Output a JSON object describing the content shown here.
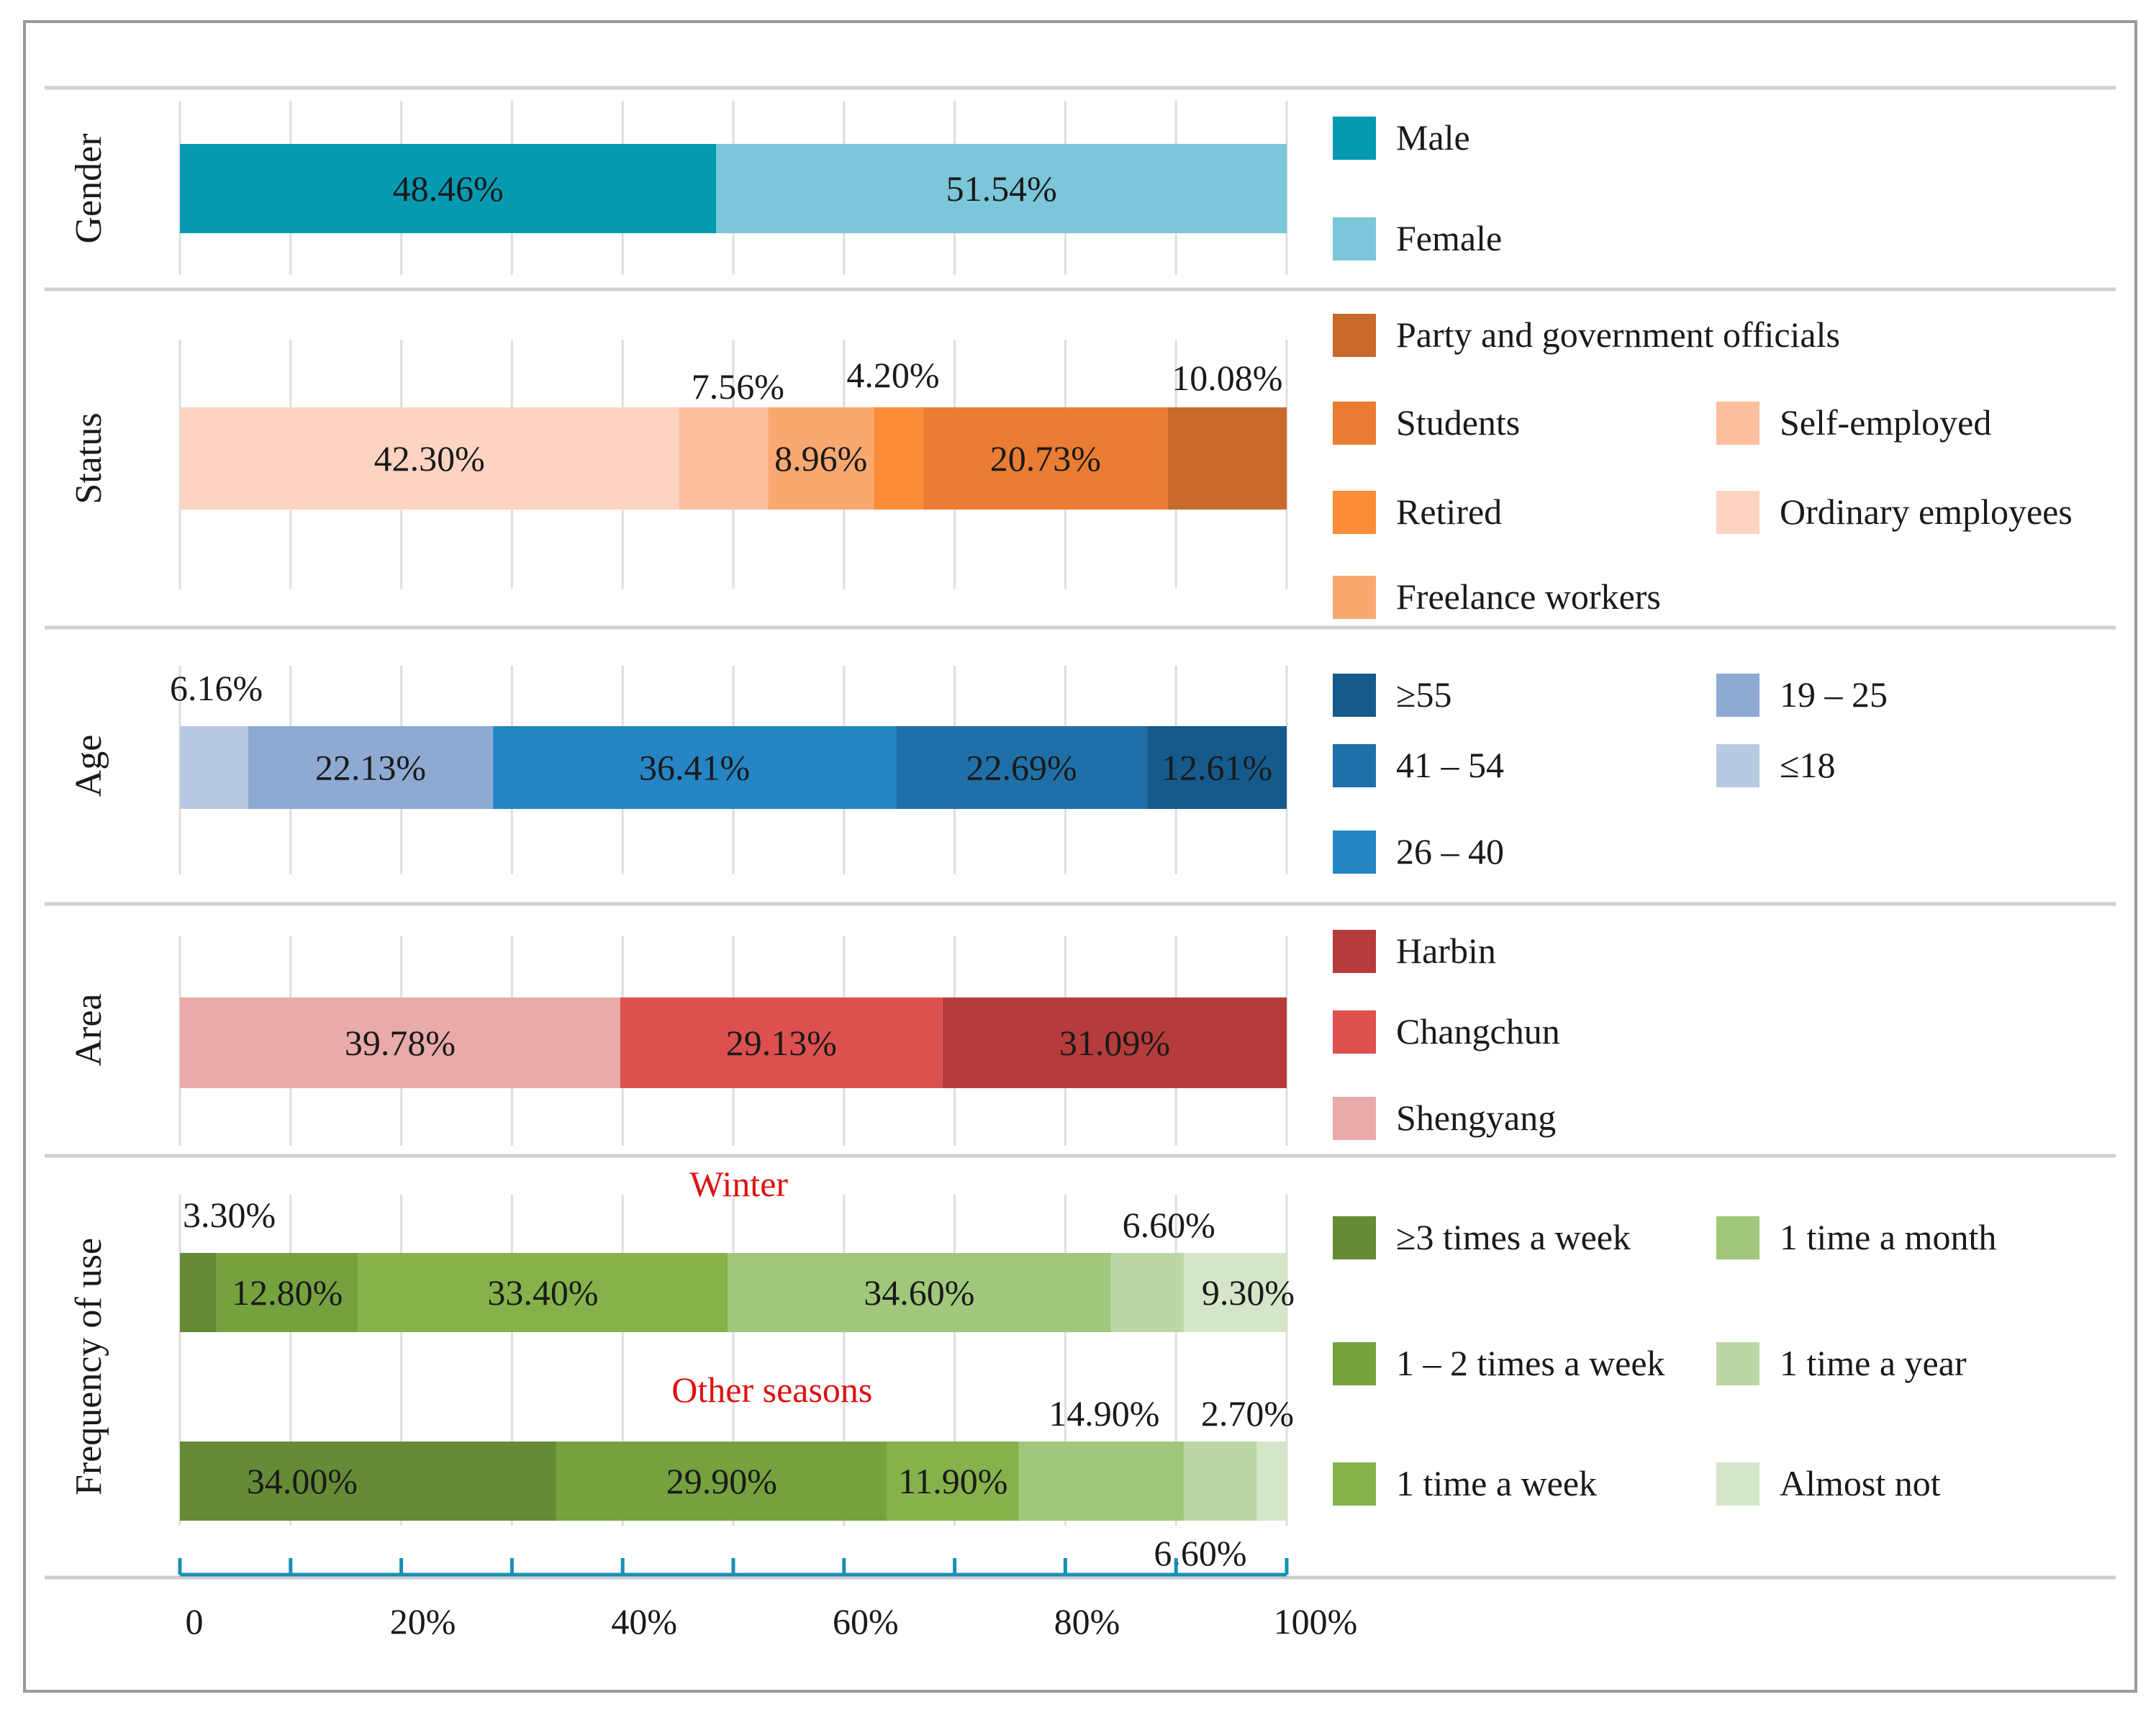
{
  "chart_data": {
    "type": "stacked-horizontal-bar",
    "x_ticks": [
      "0",
      "20%",
      "40%",
      "60%",
      "80%",
      "100%"
    ],
    "panels": [
      {
        "label": "Gender",
        "bars": [
          {
            "subtitle": "",
            "segments": [
              {
                "name": "Male",
                "value": 48.46,
                "label": "48.46%",
                "color": "#069ab2"
              },
              {
                "name": "Female",
                "value": 51.54,
                "label": "51.54%",
                "color": "#7bc6d8"
              }
            ]
          }
        ],
        "legend": [
          {
            "name": "Male",
            "color": "#069ab2"
          },
          {
            "name": "Female",
            "color": "#7bc6d8"
          }
        ]
      },
      {
        "label": "Status",
        "bars": [
          {
            "subtitle": "",
            "segments": [
              {
                "name": "Ordinary employees",
                "value": 42.3,
                "label": "42.30%",
                "color": "#fdd4c2"
              },
              {
                "name": "Self-employed",
                "value": 7.56,
                "label": "7.56%",
                "color": "#fbbf9e"
              },
              {
                "name": "Freelance workers",
                "value": 8.96,
                "label": "8.96%",
                "color": "#f9a870"
              },
              {
                "name": "Retired",
                "value": 4.2,
                "label": "4.20%",
                "color": "#fb8d38"
              },
              {
                "name": "Students",
                "value": 20.73,
                "label": "20.73%",
                "color": "#ea7d33"
              },
              {
                "name": "Party and government officials",
                "value": 10.08,
                "label": "10.08%",
                "color": "#c96a2c"
              }
            ]
          }
        ],
        "legend": [
          {
            "name": "Party and government officials",
            "color": "#c96a2c"
          },
          {
            "name": "Students",
            "color": "#ea7d33"
          },
          {
            "name": "Self-employed",
            "color": "#fbbf9e"
          },
          {
            "name": "Retired",
            "color": "#fb8d38"
          },
          {
            "name": "Ordinary employees",
            "color": "#fdd4c2"
          },
          {
            "name": "Freelance workers",
            "color": "#f9a870"
          }
        ]
      },
      {
        "label": "Age",
        "bars": [
          {
            "subtitle": "",
            "segments": [
              {
                "name": "≤18",
                "value": 6.16,
                "label": "6.16%",
                "color": "#b8c9e2"
              },
              {
                "name": "19 – 25",
                "value": 22.13,
                "label": "22.13%",
                "color": "#8eaad3"
              },
              {
                "name": "26 – 40",
                "value": 36.41,
                "label": "36.41%",
                "color": "#2585c4"
              },
              {
                "name": "41 – 54",
                "value": 22.69,
                "label": "22.69%",
                "color": "#1f70a8"
              },
              {
                "name": "≥55",
                "value": 12.61,
                "label": "12.61%",
                "color": "#155a8c"
              }
            ]
          }
        ],
        "legend": [
          {
            "name": "≥55",
            "color": "#155a8c"
          },
          {
            "name": "19 – 25",
            "color": "#8eaad3"
          },
          {
            "name": "41 – 54",
            "color": "#1f70a8"
          },
          {
            "name": "≤18",
            "color": "#b8c9e2"
          },
          {
            "name": "26 – 40",
            "color": "#2585c4"
          }
        ]
      },
      {
        "label": "Area",
        "bars": [
          {
            "subtitle": "",
            "segments": [
              {
                "name": "Shengyang",
                "value": 39.78,
                "label": "39.78%",
                "color": "#e9aaaa"
              },
              {
                "name": "Changchun",
                "value": 29.13,
                "label": "29.13%",
                "color": "#dc5150"
              },
              {
                "name": "Harbin",
                "value": 31.09,
                "label": "31.09%",
                "color": "#b53c3b"
              }
            ]
          }
        ],
        "legend": [
          {
            "name": "Harbin",
            "color": "#b53c3b"
          },
          {
            "name": "Changchun",
            "color": "#dc5150"
          },
          {
            "name": "Shengyang",
            "color": "#e9aaaa"
          }
        ]
      },
      {
        "label": "Frequency of use",
        "bars": [
          {
            "subtitle": "Winter",
            "segments": [
              {
                "name": "≥3 times a week",
                "value": 3.3,
                "label": "3.30%",
                "color": "#668b37"
              },
              {
                "name": "1 – 2 times a week",
                "value": 12.8,
                "label": "12.80%",
                "color": "#76a13f"
              },
              {
                "name": "1 time  a week",
                "value": 33.4,
                "label": "33.40%",
                "color": "#85b24a"
              },
              {
                "name": "1 time  a month",
                "value": 34.6,
                "label": "34.60%",
                "color": "#a0c77a"
              },
              {
                "name": "1 time  a year",
                "value": 6.6,
                "label": "6.60%",
                "color": "#bcd7a6"
              },
              {
                "name": "Almost not",
                "value": 9.3,
                "label": "9.30%",
                "color": "#d5e6c8"
              }
            ]
          },
          {
            "subtitle": "Other seasons",
            "segments": [
              {
                "name": "≥3 times a week",
                "value": 34.0,
                "label": "34.00%",
                "color": "#668b37"
              },
              {
                "name": "1 – 2 times a week",
                "value": 29.9,
                "label": "29.90%",
                "color": "#76a13f"
              },
              {
                "name": "1 time  a week",
                "value": 11.9,
                "label": "11.90%",
                "color": "#85b24a"
              },
              {
                "name": "1 time  a month",
                "value": 14.9,
                "label": "14.90%",
                "color": "#a0c77a"
              },
              {
                "name": "1 time  a year",
                "value": 6.6,
                "label": "6.60%",
                "color": "#bcd7a6"
              },
              {
                "name": "Almost not",
                "value": 2.7,
                "label": "2.70%",
                "color": "#d5e6c8"
              }
            ]
          }
        ],
        "legend": [
          {
            "name": "≥3 times a week",
            "color": "#668b37"
          },
          {
            "name": "1 time  a month",
            "color": "#a0c77a"
          },
          {
            "name": "1 – 2 times a week",
            "color": "#76a13f"
          },
          {
            "name": "1 time  a year",
            "color": "#bcd7a6"
          },
          {
            "name": "1 time  a week",
            "color": "#85b24a"
          },
          {
            "name": "Almost not",
            "color": "#d5e6c8"
          }
        ]
      }
    ]
  }
}
